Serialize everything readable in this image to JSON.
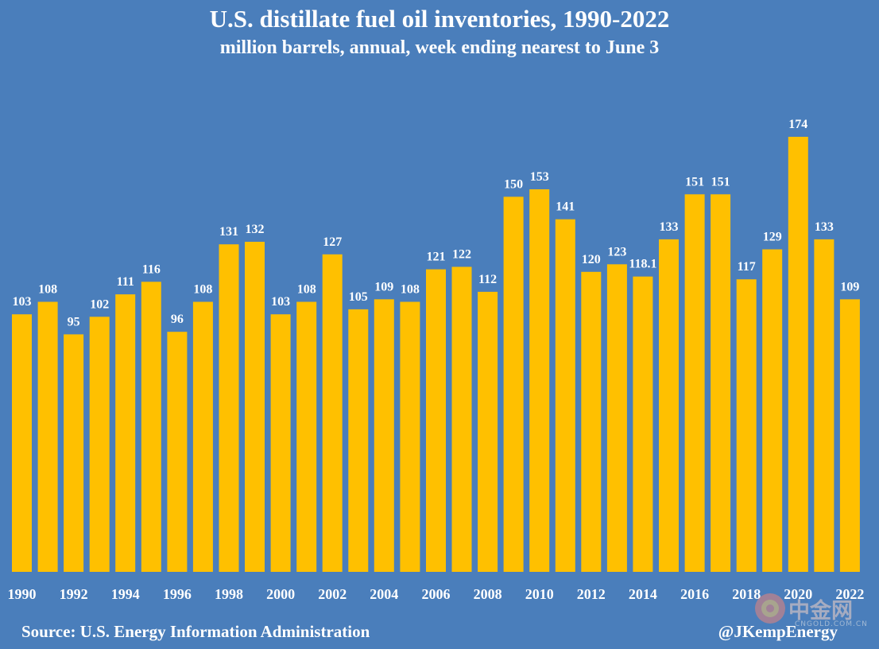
{
  "header": {
    "title": "U.S. distillate fuel oil inventories, 1990-2022",
    "subtitle": "million barrels, annual, week ending nearest to June 3"
  },
  "footer": {
    "source": "Source: U.S. Energy Information Administration",
    "handle": "@JKempEnergy"
  },
  "watermark": {
    "text": "中金网",
    "sub": "CNGOLD.COM.CN"
  },
  "colors": {
    "background": "#4a7ebb",
    "bar": "#ffc000",
    "text": "#ffffff"
  },
  "chart_data": {
    "type": "bar",
    "title": "U.S. distillate fuel oil inventories, 1990-2022",
    "subtitle": "million barrels, annual, week ending nearest to June 3",
    "categories": [
      "1990",
      "1991",
      "1992",
      "1993",
      "1994",
      "1995",
      "1996",
      "1997",
      "1998",
      "1999",
      "2000",
      "2001",
      "2002",
      "2003",
      "2004",
      "2005",
      "2006",
      "2007",
      "2008",
      "2009",
      "2010",
      "2011",
      "2012",
      "2013",
      "2014",
      "2015",
      "2016",
      "2017",
      "2018",
      "2019",
      "2020",
      "2021",
      "2022"
    ],
    "values": [
      103,
      108,
      95,
      102,
      111,
      116,
      96,
      108,
      131,
      132,
      103,
      108,
      127,
      105,
      109,
      108,
      121,
      122,
      112,
      150,
      153,
      141,
      120,
      123,
      118.1,
      133,
      151,
      151,
      117,
      129,
      174,
      133,
      109
    ],
    "value_labels": [
      "103",
      "108",
      "95",
      "102",
      "111",
      "116",
      "96",
      "108",
      "131",
      "132",
      "103",
      "108",
      "127",
      "105",
      "109",
      "108",
      "121",
      "122",
      "112",
      "150",
      "153",
      "141",
      "120",
      "123",
      "118.1",
      "133",
      "151",
      "151",
      "117",
      "129",
      "174",
      "133",
      "109"
    ],
    "x_tick_labels": [
      "1990",
      "1992",
      "1994",
      "1996",
      "1998",
      "2000",
      "2002",
      "2004",
      "2006",
      "2008",
      "2010",
      "2012",
      "2014",
      "2016",
      "2018",
      "2020",
      "2022"
    ],
    "xlabel": "",
    "ylabel": "",
    "ylim": [
      0,
      174
    ],
    "grid": false,
    "legend": "none"
  }
}
